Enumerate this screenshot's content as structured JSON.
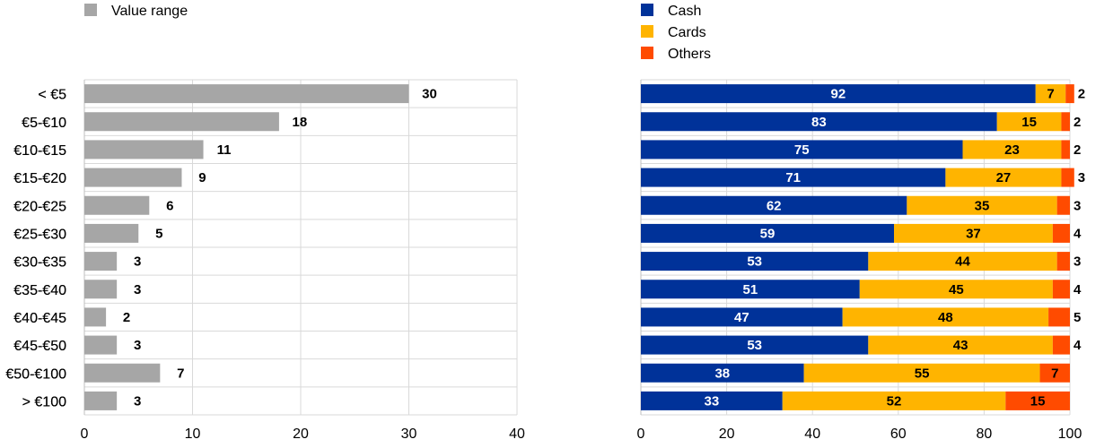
{
  "chart_data": [
    {
      "type": "bar",
      "orientation": "horizontal",
      "categories": [
        "< €5",
        "€5-€10",
        "€10-€15",
        "€15-€20",
        "€20-€25",
        "€25-€30",
        "€30-€35",
        "€35-€40",
        "€40-€45",
        "€45-€50",
        "€50-€100",
        "> €100"
      ],
      "series": [
        {
          "name": "Value range",
          "values": [
            30,
            18,
            11,
            9,
            6,
            5,
            3,
            3,
            2,
            3,
            7,
            3
          ],
          "color": "#a6a6a6"
        }
      ],
      "xlim": [
        0,
        40
      ],
      "xticks": [
        0,
        10,
        20,
        30,
        40
      ],
      "grid": true,
      "legend_position": "top-left",
      "data_labels": true
    },
    {
      "type": "bar",
      "orientation": "horizontal",
      "stacked": true,
      "categories": [
        "< €5",
        "€5-€10",
        "€10-€15",
        "€15-€20",
        "€20-€25",
        "€25-€30",
        "€30-€35",
        "€35-€40",
        "€40-€45",
        "€45-€50",
        "€50-€100",
        "> €100"
      ],
      "series": [
        {
          "name": "Cash",
          "values": [
            92,
            83,
            75,
            71,
            62,
            59,
            53,
            51,
            47,
            53,
            38,
            33
          ],
          "color": "#003299"
        },
        {
          "name": "Cards",
          "values": [
            7,
            15,
            23,
            27,
            35,
            37,
            44,
            45,
            48,
            43,
            55,
            52
          ],
          "color": "#ffb400"
        },
        {
          "name": "Others",
          "values": [
            2,
            2,
            2,
            3,
            3,
            4,
            3,
            4,
            5,
            4,
            7,
            15
          ],
          "color": "#ff4b00"
        }
      ],
      "xlim": [
        0,
        100
      ],
      "xticks": [
        0,
        20,
        40,
        60,
        80,
        100
      ],
      "grid": true,
      "legend_position": "top-left",
      "data_labels": true
    }
  ]
}
